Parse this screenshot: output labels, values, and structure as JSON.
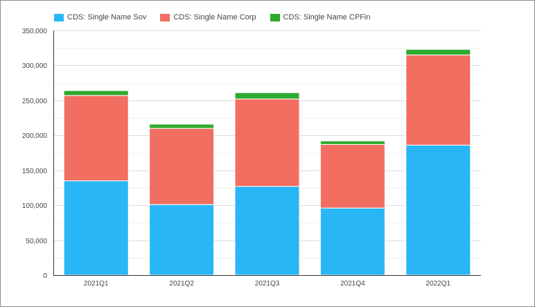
{
  "chart_data": {
    "type": "bar",
    "stacked": true,
    "categories": [
      "2021Q1",
      "2021Q2",
      "2021Q3",
      "2021Q4",
      "2022Q1"
    ],
    "series": [
      {
        "name": "CDS: Single Name Sov",
        "color": "#29b6f6",
        "values": [
          135000,
          101000,
          127000,
          96000,
          186000
        ]
      },
      {
        "name": "CDS: Single Name Corp",
        "color": "#f26e60",
        "values": [
          122000,
          109000,
          125000,
          91000,
          129000
        ]
      },
      {
        "name": "CDS: Single Name CPFin",
        "color": "#2eaa2e",
        "values": [
          7000,
          6000,
          9000,
          5000,
          8000
        ]
      }
    ],
    "y_ticks": [
      "0",
      "50,000",
      "100,000",
      "150,000",
      "200,000",
      "250,000",
      "300,000",
      "350,000"
    ],
    "ylim": [
      0,
      350000
    ],
    "grid": true,
    "legend_position": "top-left"
  }
}
